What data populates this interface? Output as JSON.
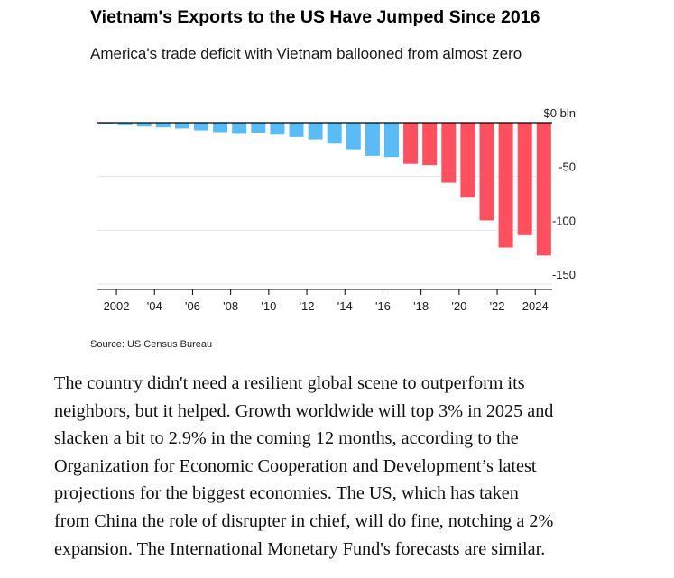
{
  "title": "Vietnam's Exports to the US Have Jumped Since 2016",
  "subtitle": "America's trade deficit with Vietnam ballooned from almost zero",
  "source": "Source: US Census Bureau",
  "colors": {
    "before_2016": "#5bbcf5",
    "after_2016": "#ff5060",
    "axis": "#000000",
    "grid": "#e5e5e5"
  },
  "chart_data": {
    "type": "bar",
    "title": "Vietnam's Exports to the US Have Jumped Since 2016",
    "subtitle": "America's trade deficit with Vietnam ballooned from almost zero",
    "ylabel": "",
    "ylim": [
      -150,
      0
    ],
    "y_ticks": [
      {
        "value": 0,
        "label": "$0 bln"
      },
      {
        "value": -50,
        "label": "-50"
      },
      {
        "value": -100,
        "label": "-100"
      },
      {
        "value": -150,
        "label": "-150"
      }
    ],
    "x_ticks": [
      {
        "year": 2002,
        "label": "2002"
      },
      {
        "year": 2004,
        "label": "'04"
      },
      {
        "year": 2006,
        "label": "'06"
      },
      {
        "year": 2008,
        "label": "'08"
      },
      {
        "year": 2010,
        "label": "'10"
      },
      {
        "year": 2012,
        "label": "'12"
      },
      {
        "year": 2014,
        "label": "'14"
      },
      {
        "year": 2016,
        "label": "'16"
      },
      {
        "year": 2018,
        "label": "'18"
      },
      {
        "year": 2020,
        "label": "'20"
      },
      {
        "year": 2022,
        "label": "'22"
      },
      {
        "year": 2024,
        "label": "2024"
      }
    ],
    "categories": [
      2001,
      2002,
      2003,
      2004,
      2005,
      2006,
      2007,
      2008,
      2009,
      2010,
      2011,
      2012,
      2013,
      2014,
      2015,
      2016,
      2017,
      2018,
      2019,
      2020,
      2021,
      2022,
      2023,
      2024
    ],
    "values": [
      -1,
      -2.4,
      -3.6,
      -4.3,
      -5.4,
      -7.2,
      -8.8,
      -10.4,
      -9.5,
      -11.1,
      -13.3,
      -15.6,
      -19.5,
      -24.8,
      -30.9,
      -32.0,
      -38.3,
      -39.5,
      -55.8,
      -69.7,
      -90.9,
      -116.1,
      -104.6,
      -123.5
    ],
    "series_split_year": 2017,
    "grid": true,
    "legend": "none",
    "source": "Source: US Census Bureau"
  },
  "article": {
    "lines": [
      "The country didn't need a resilient global scene to outperform its",
      "neighbors, but it helped. Growth worldwide will top 3% in 2025 and",
      "slacken a bit to 2.9% in the coming 12 months, according to the",
      "Organization for Economic Cooperation and Development’s latest",
      "projections for the biggest economies. The US, which has taken",
      "from China the role of disrupter in chief, will do fine, notching a 2%",
      "expansion. The International Monetary Fund's forecasts are similar."
    ]
  }
}
